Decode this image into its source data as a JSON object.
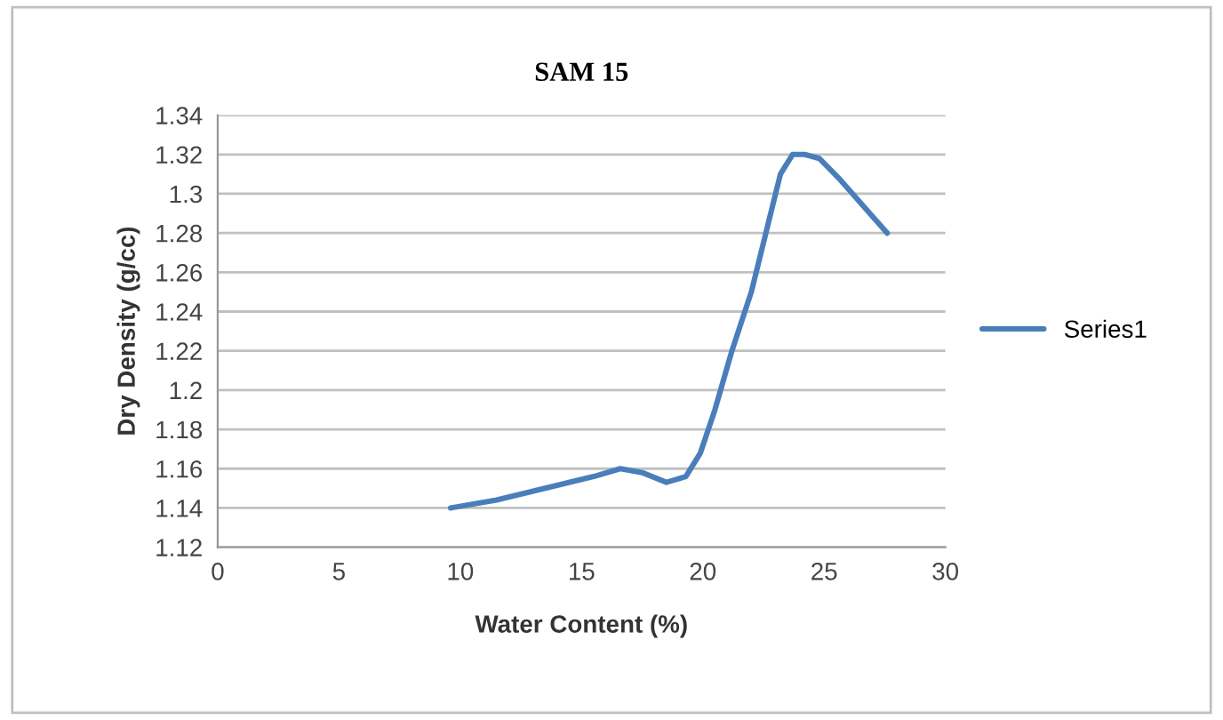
{
  "chart_data": {
    "type": "line",
    "title": "SAM 15",
    "xlabel": "Water Content (%)",
    "ylabel": "Dry Density (g/cc)",
    "series": [
      {
        "name": "Series1",
        "color": "#4a7ebb",
        "x": [
          9.6,
          11.5,
          13.5,
          15.5,
          16.6,
          17.5,
          18.5,
          19.3,
          19.9,
          20.5,
          21.2,
          22.0,
          22.7,
          23.2,
          23.7,
          24.2,
          24.8,
          25.6,
          26.6,
          27.6
        ],
        "values": [
          1.14,
          1.144,
          1.15,
          1.156,
          1.16,
          1.158,
          1.153,
          1.156,
          1.168,
          1.19,
          1.22,
          1.25,
          1.285,
          1.31,
          1.32,
          1.32,
          1.318,
          1.308,
          1.294,
          1.28
        ]
      }
    ],
    "xlim": [
      0,
      30
    ],
    "xticks": [
      0,
      5,
      10,
      15,
      20,
      25,
      30
    ],
    "ylim": [
      1.12,
      1.34
    ],
    "yticks": [
      1.12,
      1.14,
      1.16,
      1.18,
      {
        "value": 1.2,
        "label": "1.2"
      },
      1.22,
      1.24,
      1.26,
      1.28,
      {
        "value": 1.3,
        "label": "1.3"
      },
      1.32,
      1.34
    ],
    "grid": "y",
    "legend": "right",
    "marker": "none",
    "line_style": "solid"
  }
}
